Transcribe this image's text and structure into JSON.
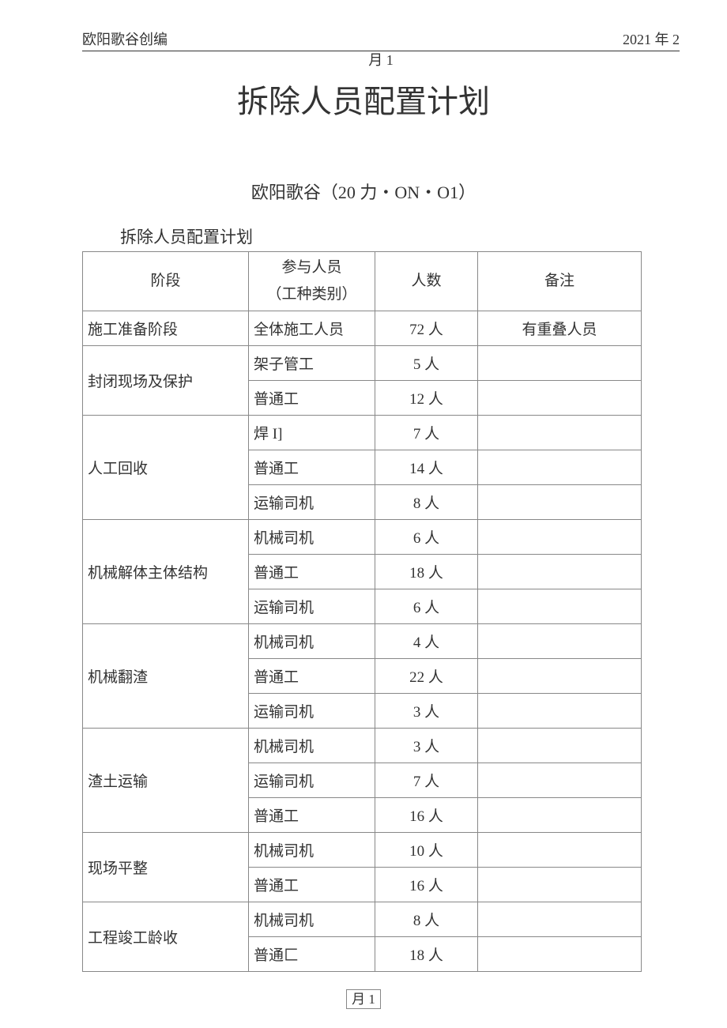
{
  "header": {
    "left": "欧阳歌谷创编",
    "right": "2021 年 2",
    "line2": "月 1"
  },
  "title": "拆除人员配置计划",
  "author_line": "欧阳歌谷（20 力・ON・O1）",
  "subtitle": "拆除人员配置计划",
  "table": {
    "headers": {
      "stage": "阶段",
      "type_line1": "参与人员",
      "type_line2": "（工种类别）",
      "count": "人数",
      "note": "备注"
    },
    "count_suffix": " 人",
    "sections": [
      {
        "stage": "施工准备阶段",
        "rows": [
          {
            "type": "全体施工人员",
            "count": "72",
            "note": "有重叠人员"
          }
        ]
      },
      {
        "stage": "封闭现场及保护",
        "rows": [
          {
            "type": "架子管工",
            "count": "5",
            "note": ""
          },
          {
            "type": "普通工",
            "count": "12",
            "note": ""
          }
        ]
      },
      {
        "stage": "人工回收",
        "rows": [
          {
            "type": "焊 I]",
            "count": "7",
            "note": ""
          },
          {
            "type": "普通工",
            "count": "14",
            "note": ""
          },
          {
            "type": "运输司机",
            "count": "8",
            "note": ""
          }
        ]
      },
      {
        "stage": "机械解体主体结构",
        "rows": [
          {
            "type": "机械司机",
            "count": "6",
            "note": ""
          },
          {
            "type": "普通工",
            "count": "18",
            "note": ""
          },
          {
            "type": "运输司机",
            "count": "6",
            "note": ""
          }
        ]
      },
      {
        "stage": "机械翻渣",
        "rows": [
          {
            "type": "机械司机",
            "count": "4",
            "note": ""
          },
          {
            "type": "普通工",
            "count": "22",
            "note": ""
          },
          {
            "type": "运输司机",
            "count": "3",
            "note": ""
          }
        ]
      },
      {
        "stage": "渣土运输",
        "rows": [
          {
            "type": "机械司机",
            "count": "3",
            "note": ""
          },
          {
            "type": "运输司机",
            "count": "7",
            "note": ""
          },
          {
            "type": "普通工",
            "count": "16",
            "note": ""
          }
        ]
      },
      {
        "stage": "现场平整",
        "rows": [
          {
            "type": "机械司机",
            "count": "10",
            "note": ""
          },
          {
            "type": "普通工",
            "count": "16",
            "note": ""
          }
        ]
      },
      {
        "stage": "工程竣工龄收",
        "rows": [
          {
            "type": "机械司机",
            "count": "8",
            "note": ""
          },
          {
            "type": "普通匚",
            "count": "18",
            "note": ""
          }
        ]
      }
    ]
  },
  "footer": "月 1",
  "styling": {
    "page_bg": "#ffffff",
    "text_color": "#333333",
    "border_color": "#888888",
    "title_fontsize": 40,
    "body_fontsize": 19,
    "header_fontsize": 18
  }
}
